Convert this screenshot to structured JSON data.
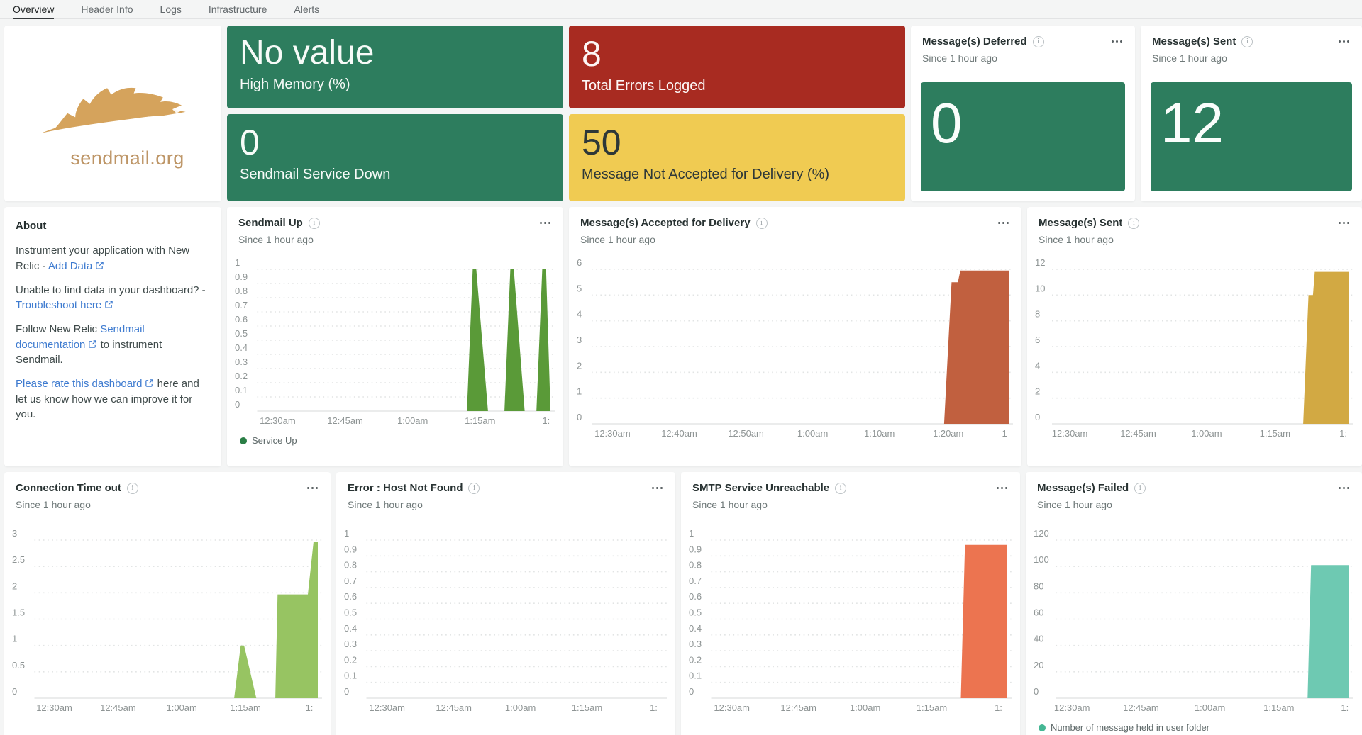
{
  "tabs": {
    "items": [
      {
        "label": "Overview",
        "active": true
      },
      {
        "label": "Header Info",
        "active": false
      },
      {
        "label": "Logs",
        "active": false
      },
      {
        "label": "Infrastructure",
        "active": false
      },
      {
        "label": "Alerts",
        "active": false
      }
    ]
  },
  "icons": {
    "info": "i"
  },
  "logo": {
    "text": "sendmail.org",
    "color": "#d5a35c"
  },
  "billboards": [
    {
      "value": "No value",
      "label": "High Memory (%)",
      "bg": "#2d7d5e",
      "fg": "#f7fbf8"
    },
    {
      "value": "0",
      "label": "Sendmail Service Down",
      "bg": "#2d7d5e",
      "fg": "#f7fbf8"
    },
    {
      "value": "8",
      "label": "Total Errors Logged",
      "bg": "#a82b21",
      "fg": "#fdf7f6"
    },
    {
      "value": "50",
      "label": "Message Not Accepted for Delivery (%)",
      "bg": "#f0cb52",
      "fg": "#2e3838"
    }
  ],
  "stat_cards": [
    {
      "title": "Message(s) Deferred",
      "subtitle": "Since 1 hour ago",
      "value": "0",
      "bg": "#2d7d5e"
    },
    {
      "title": "Message(s) Sent",
      "subtitle": "Since 1 hour ago",
      "value": "12",
      "bg": "#2d7d5e"
    }
  ],
  "about": {
    "heading": "About",
    "p1_text": "Instrument your application with New Relic - ",
    "p1_link": "Add Data",
    "p2_text": "Unable to find data in your dashboard? - ",
    "p2_link": "Troubleshoot here",
    "p3_pre": "Follow New Relic ",
    "p3_link": "Sendmail documentation",
    "p3_post": "  to instrument Sendmail.",
    "p4_link": "Please rate this dashboard",
    "p4_post": "  here and let us know how we can improve it for you."
  },
  "chart_data": [
    {
      "type": "area",
      "title": "Sendmail Up",
      "subtitle": "Since 1 hour ago",
      "ylim": [
        0,
        1
      ],
      "grid": true,
      "legend_position": "bottom",
      "yticks": [
        "1",
        "0.9",
        "0.8",
        "0.7",
        "0.6",
        "0.5",
        "0.4",
        "0.3",
        "0.2",
        "0.1",
        "0"
      ],
      "xticks": [
        {
          "label": "12:30am",
          "pos": 0.07
        },
        {
          "label": "12:45am",
          "pos": 0.3
        },
        {
          "label": "1:00am",
          "pos": 0.53
        },
        {
          "label": "1:15am",
          "pos": 0.76
        },
        {
          "label": "1:",
          "pos": 0.985
        }
      ],
      "series": [
        {
          "name": "Service Up",
          "color": "#5a9a38",
          "points": [
            [
              0.715,
              0
            ],
            [
              0.735,
              1
            ],
            [
              0.747,
              1
            ],
            [
              0.787,
              0
            ],
            [
              0.843,
              0
            ],
            [
              0.863,
              1
            ],
            [
              0.875,
              1
            ],
            [
              0.912,
              0
            ],
            [
              0.952,
              0
            ],
            [
              0.972,
              1
            ],
            [
              0.985,
              1
            ],
            [
              1,
              0
            ]
          ]
        }
      ],
      "legend": [
        {
          "label": "Service Up",
          "color": "#2a7e45"
        }
      ]
    },
    {
      "type": "area",
      "title": "Message(s) Accepted for Delivery",
      "subtitle": "Since 1 hour ago",
      "ylim": [
        0,
        6
      ],
      "grid": true,
      "yticks": [
        "6",
        "5",
        "4",
        "3",
        "2",
        "1",
        "0"
      ],
      "xticks": [
        {
          "label": "12:30am",
          "pos": 0.05
        },
        {
          "label": "12:40am",
          "pos": 0.21
        },
        {
          "label": "12:50am",
          "pos": 0.37
        },
        {
          "label": "1:00am",
          "pos": 0.53
        },
        {
          "label": "1:10am",
          "pos": 0.69
        },
        {
          "label": "1:20am",
          "pos": 0.855
        },
        {
          "label": "1",
          "pos": 0.99
        }
      ],
      "series": [
        {
          "name": "Message(s) Accepted for Delivery",
          "color": "#c1603f",
          "points": [
            [
              0.845,
              0
            ],
            [
              0.863,
              5.5
            ],
            [
              0.878,
              5.5
            ],
            [
              0.884,
              5.95
            ],
            [
              1,
              5.95
            ],
            [
              1,
              0
            ]
          ]
        }
      ]
    },
    {
      "type": "area",
      "title": "Message(s) Sent",
      "subtitle": "Since 1 hour ago",
      "ylim": [
        0,
        12
      ],
      "grid": true,
      "yticks": [
        "12",
        "10",
        "8",
        "6",
        "4",
        "2",
        "0"
      ],
      "xticks": [
        {
          "label": "12:30am",
          "pos": 0.06
        },
        {
          "label": "12:45am",
          "pos": 0.29
        },
        {
          "label": "1:00am",
          "pos": 0.52
        },
        {
          "label": "1:15am",
          "pos": 0.75
        },
        {
          "label": "1:",
          "pos": 0.98
        }
      ],
      "series": [
        {
          "name": "Message(s) Sent",
          "color": "#d2a943",
          "points": [
            [
              0.845,
              0
            ],
            [
              0.863,
              10
            ],
            [
              0.878,
              10
            ],
            [
              0.884,
              11.8
            ],
            [
              1,
              11.8
            ],
            [
              1,
              0
            ]
          ]
        }
      ]
    },
    {
      "type": "area",
      "title": "Connection Time out",
      "subtitle": "Since 1 hour ago",
      "ylim": [
        0,
        3
      ],
      "grid": true,
      "yticks": [
        "3",
        "2.5",
        "2",
        "1.5",
        "1",
        "0.5",
        "0"
      ],
      "xticks": [
        {
          "label": "12:30am",
          "pos": 0.07
        },
        {
          "label": "12:45am",
          "pos": 0.295
        },
        {
          "label": "1:00am",
          "pos": 0.52
        },
        {
          "label": "1:15am",
          "pos": 0.745
        },
        {
          "label": "1:",
          "pos": 0.97
        }
      ],
      "series": [
        {
          "name": "Connection Time out",
          "color": "#97c462",
          "points": [
            [
              0.705,
              0
            ],
            [
              0.728,
              1
            ],
            [
              0.74,
              1
            ],
            [
              0.783,
              0
            ],
            [
              0.85,
              0
            ],
            [
              0.858,
              1.97
            ],
            [
              0.965,
              1.97
            ],
            [
              0.985,
              2.97
            ],
            [
              1,
              2.97
            ],
            [
              1,
              0
            ]
          ]
        }
      ],
      "legend": []
    },
    {
      "type": "area",
      "title": "Error : Host Not Found",
      "subtitle": "Since 1 hour ago",
      "ylim": [
        0,
        1
      ],
      "grid": true,
      "yticks": [
        "1",
        "0.9",
        "0.8",
        "0.7",
        "0.6",
        "0.5",
        "0.4",
        "0.3",
        "0.2",
        "0.1",
        "0"
      ],
      "xticks": [
        {
          "label": "12:30am",
          "pos": 0.07
        },
        {
          "label": "12:45am",
          "pos": 0.295
        },
        {
          "label": "1:00am",
          "pos": 0.52
        },
        {
          "label": "1:15am",
          "pos": 0.745
        },
        {
          "label": "1:",
          "pos": 0.97
        }
      ],
      "series": [],
      "legend": []
    },
    {
      "type": "area",
      "title": "SMTP Service Unreachable",
      "subtitle": "Since 1 hour ago",
      "ylim": [
        0,
        1
      ],
      "grid": true,
      "yticks": [
        "1",
        "0.9",
        "0.8",
        "0.7",
        "0.6",
        "0.5",
        "0.4",
        "0.3",
        "0.2",
        "0.1",
        "0"
      ],
      "xticks": [
        {
          "label": "12:30am",
          "pos": 0.07
        },
        {
          "label": "12:45am",
          "pos": 0.295
        },
        {
          "label": "1:00am",
          "pos": 0.52
        },
        {
          "label": "1:15am",
          "pos": 0.745
        },
        {
          "label": "1:",
          "pos": 0.97
        }
      ],
      "series": [
        {
          "name": "SMTP Service Unreachable",
          "color": "#ec7450",
          "points": [
            [
              0.843,
              0
            ],
            [
              0.857,
              0.97
            ],
            [
              1,
              0.97
            ],
            [
              1,
              0
            ]
          ]
        }
      ],
      "legend": []
    },
    {
      "type": "area",
      "title": "Message(s) Failed",
      "subtitle": "Since 1 hour ago",
      "ylim": [
        0,
        120
      ],
      "grid": true,
      "legend_position": "bottom",
      "yticks": [
        "120",
        "100",
        "80",
        "60",
        "40",
        "20",
        "0"
      ],
      "xticks": [
        {
          "label": "12:30am",
          "pos": 0.055
        },
        {
          "label": "12:45am",
          "pos": 0.29
        },
        {
          "label": "1:00am",
          "pos": 0.525
        },
        {
          "label": "1:15am",
          "pos": 0.76
        },
        {
          "label": "1:",
          "pos": 0.985
        }
      ],
      "series": [
        {
          "name": "Number of message held in user folder",
          "color": "#6ec9b2",
          "points": [
            [
              0.858,
              0
            ],
            [
              0.87,
              101
            ],
            [
              1,
              101
            ],
            [
              1,
              0
            ]
          ]
        }
      ],
      "legend": [
        {
          "label": "Number of message held in user folder",
          "color": "#45b794"
        }
      ]
    }
  ]
}
